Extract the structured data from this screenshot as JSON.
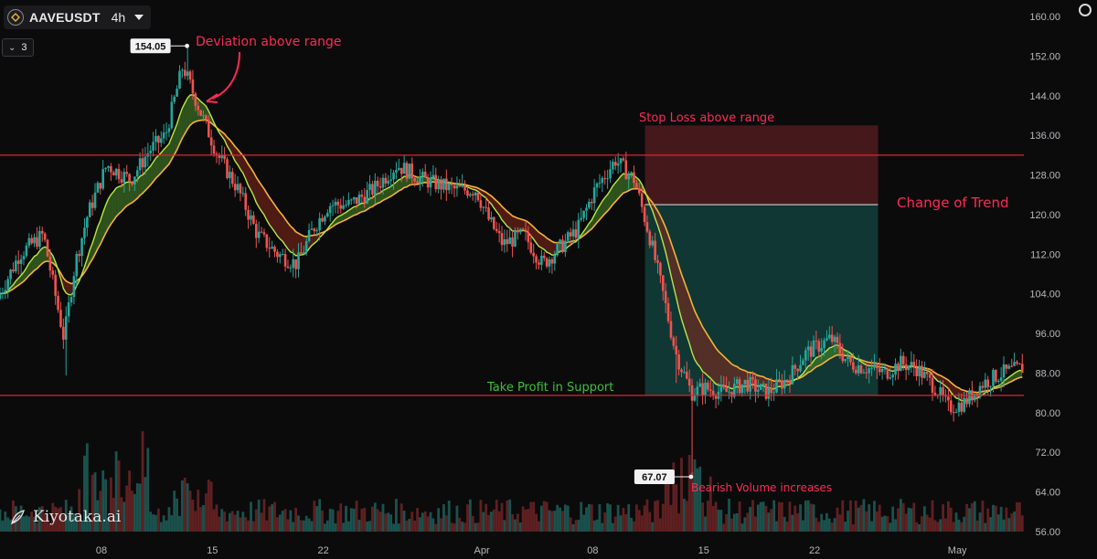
{
  "header": {
    "symbol": "AAVEUSDT",
    "timeframe": "4h",
    "indicator_count": "3"
  },
  "watermark": "Kiyotaka.ai",
  "colors": {
    "background": "#0b0b0c",
    "up": "#26a69a",
    "down": "#ef5350",
    "ema_fast": "#b6e84a",
    "ema_slow": "#f5b23c",
    "range_line": "#d9262f",
    "annotation_red": "#ff2a55",
    "annotation_green": "#3cc13b"
  },
  "chart_data": {
    "type": "candlestick",
    "instrument": "AAVEUSDT",
    "interval": "4h",
    "ylim": [
      56,
      160
    ],
    "y_ticks": [
      "160.00",
      "152.00",
      "144.00",
      "136.00",
      "128.00",
      "120.00",
      "112.00",
      "104.00",
      "96.00",
      "88.00",
      "80.00",
      "72.00",
      "64.00",
      "56.00"
    ],
    "x_labels": [
      {
        "label": "08",
        "day": 8
      },
      {
        "label": "15",
        "day": 15
      },
      {
        "label": "22",
        "day": 22
      },
      {
        "label": "Apr",
        "day": 32
      },
      {
        "label": "08",
        "day": 39
      },
      {
        "label": "15",
        "day": 46
      },
      {
        "label": "22",
        "day": 53
      },
      {
        "label": "May",
        "day": 62
      }
    ],
    "x_range_days": [
      1.6,
      66.2
    ],
    "price_path": [
      [
        1.6,
        103
      ],
      [
        3.0,
        112
      ],
      [
        4.5,
        116
      ],
      [
        5.8,
        95
      ],
      [
        6.5,
        110
      ],
      [
        7.3,
        120
      ],
      [
        8.5,
        130
      ],
      [
        10.0,
        127
      ],
      [
        11.2,
        133
      ],
      [
        12.2,
        136
      ],
      [
        13.3,
        150
      ],
      [
        14.5,
        140
      ],
      [
        15.5,
        132
      ],
      [
        16.8,
        125
      ],
      [
        18.0,
        116
      ],
      [
        19.3,
        112
      ],
      [
        20.5,
        110
      ],
      [
        21.5,
        117
      ],
      [
        22.5,
        122
      ],
      [
        23.8,
        122
      ],
      [
        25.3,
        125
      ],
      [
        26.8,
        130
      ],
      [
        28.5,
        127
      ],
      [
        30.5,
        125
      ],
      [
        31.8,
        125
      ],
      [
        32.6,
        119
      ],
      [
        33.5,
        114
      ],
      [
        34.8,
        116
      ],
      [
        36.0,
        110
      ],
      [
        37.0,
        113
      ],
      [
        38.2,
        117
      ],
      [
        39.3,
        125
      ],
      [
        40.6,
        131
      ],
      [
        41.8,
        127
      ],
      [
        42.8,
        115
      ],
      [
        43.6,
        104
      ],
      [
        44.4,
        92
      ],
      [
        45.4,
        84
      ],
      [
        46.2,
        85
      ],
      [
        47.5,
        84
      ],
      [
        48.8,
        86
      ],
      [
        50.2,
        84
      ],
      [
        51.5,
        87
      ],
      [
        52.6,
        92
      ],
      [
        54.2,
        95
      ],
      [
        55.3,
        90
      ],
      [
        56.5,
        89
      ],
      [
        57.6,
        88
      ],
      [
        58.6,
        90
      ],
      [
        59.6,
        89
      ],
      [
        60.8,
        85
      ],
      [
        61.6,
        81
      ],
      [
        62.6,
        82
      ],
      [
        63.8,
        86
      ],
      [
        65.0,
        88
      ],
      [
        66.2,
        89
      ]
    ],
    "range_high": 132.0,
    "range_low": 83.5,
    "trade_box": {
      "entry_day": 42.3,
      "exit_day": 57.0,
      "stop_loss": 138.0,
      "entry": 122.0,
      "take_profit": 83.5
    },
    "price_labels": [
      {
        "text": "154.05",
        "day": 13.4,
        "price": 154.05
      },
      {
        "text": "67.07",
        "day": 45.2,
        "price": 67.07
      }
    ],
    "annotations": [
      {
        "text": "Deviation above range",
        "color": "#ff2a55"
      },
      {
        "text": "Stop Loss above range",
        "color": "#ff2a55"
      },
      {
        "text": "Change of Trend",
        "color": "#ff2a55"
      },
      {
        "text": "Take Profit in Support",
        "color": "#3cc13b"
      },
      {
        "text": "Bearish Volume increases",
        "color": "#ff2a55"
      }
    ],
    "moving_averages": [
      {
        "color": "#b6e84a",
        "period": 0.9
      },
      {
        "color": "#f5b23c",
        "period": 2.2
      }
    ],
    "volume": "bars at bottom, largest near day 8-10 and day 45"
  }
}
